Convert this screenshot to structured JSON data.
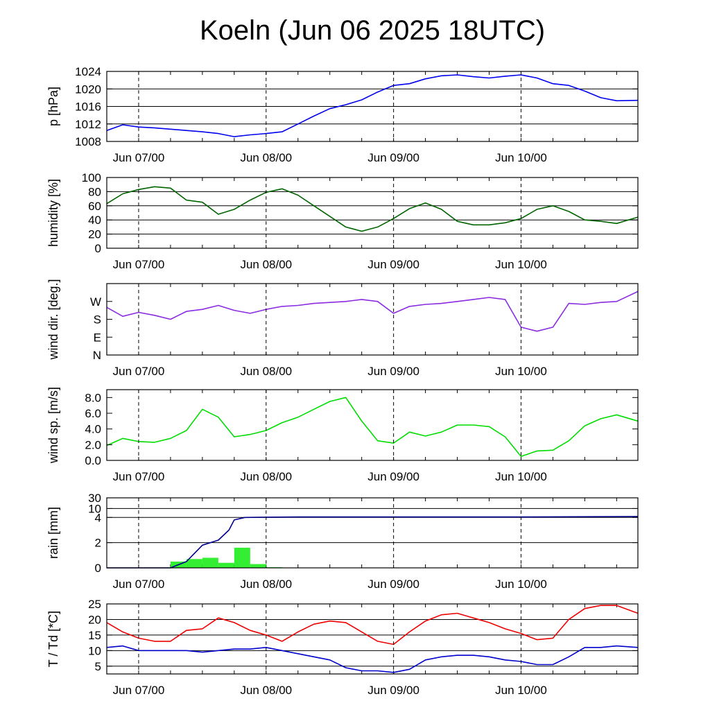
{
  "title": "Koeln (Jun 06 2025 18UTC)",
  "time_axis": {
    "start": "2025-06-06T18:00Z",
    "end": "2025-06-10T22:00Z",
    "tick_labels": [
      "Jun 07/00",
      "Jun 08/00",
      "Jun 09/00",
      "Jun 10/00"
    ],
    "tick_times": [
      "2025-06-07T00:00Z",
      "2025-06-08T00:00Z",
      "2025-06-09T00:00Z",
      "2025-06-10T00:00Z"
    ]
  },
  "chart_data": [
    {
      "type": "line",
      "ylabel": "p [hPa]",
      "ylim": [
        1008,
        1024
      ],
      "yticks": [
        1008,
        1012,
        1016,
        1020,
        1024
      ],
      "ytick_labels": [
        "1008",
        "1012",
        "1016",
        "1020",
        "1024"
      ],
      "grid": true,
      "series": [
        {
          "color": "#0000ee",
          "x": [
            "2025-06-06T18:00Z",
            "2025-06-06T21:00Z",
            "2025-06-07T00:00Z",
            "2025-06-07T03:00Z",
            "2025-06-07T06:00Z",
            "2025-06-07T09:00Z",
            "2025-06-07T12:00Z",
            "2025-06-07T15:00Z",
            "2025-06-07T18:00Z",
            "2025-06-07T21:00Z",
            "2025-06-08T00:00Z",
            "2025-06-08T03:00Z",
            "2025-06-08T06:00Z",
            "2025-06-08T09:00Z",
            "2025-06-08T12:00Z",
            "2025-06-08T15:00Z",
            "2025-06-08T18:00Z",
            "2025-06-08T21:00Z",
            "2025-06-09T00:00Z",
            "2025-06-09T03:00Z",
            "2025-06-09T06:00Z",
            "2025-06-09T09:00Z",
            "2025-06-09T12:00Z",
            "2025-06-09T15:00Z",
            "2025-06-09T18:00Z",
            "2025-06-09T21:00Z",
            "2025-06-10T00:00Z",
            "2025-06-10T03:00Z",
            "2025-06-10T06:00Z",
            "2025-06-10T09:00Z",
            "2025-06-10T12:00Z",
            "2025-06-10T15:00Z",
            "2025-06-10T18:00Z",
            "2025-06-10T22:00Z"
          ],
          "y": [
            1010.5,
            1011.8,
            1011.3,
            1011.1,
            1010.8,
            1010.5,
            1010.2,
            1009.8,
            1009.1,
            1009.5,
            1009.8,
            1010.2,
            1012.0,
            1013.8,
            1015.5,
            1016.4,
            1017.5,
            1019.3,
            1020.8,
            1021.2,
            1022.3,
            1023.0,
            1023.2,
            1022.8,
            1022.5,
            1022.9,
            1023.2,
            1022.5,
            1021.2,
            1020.8,
            1019.5,
            1018.0,
            1017.3,
            1017.4
          ]
        }
      ]
    },
    {
      "type": "line",
      "ylabel": "humidity [%]",
      "ylim": [
        0,
        100
      ],
      "yticks": [
        0,
        20,
        40,
        60,
        80,
        100
      ],
      "ytick_labels": [
        "0",
        "20",
        "40",
        "60",
        "80",
        "100"
      ],
      "grid": true,
      "series": [
        {
          "color": "#006400",
          "x": [
            "2025-06-06T18:00Z",
            "2025-06-06T21:00Z",
            "2025-06-07T00:00Z",
            "2025-06-07T03:00Z",
            "2025-06-07T06:00Z",
            "2025-06-07T09:00Z",
            "2025-06-07T12:00Z",
            "2025-06-07T15:00Z",
            "2025-06-07T18:00Z",
            "2025-06-07T21:00Z",
            "2025-06-08T00:00Z",
            "2025-06-08T03:00Z",
            "2025-06-08T06:00Z",
            "2025-06-08T09:00Z",
            "2025-06-08T12:00Z",
            "2025-06-08T15:00Z",
            "2025-06-08T18:00Z",
            "2025-06-08T21:00Z",
            "2025-06-09T00:00Z",
            "2025-06-09T03:00Z",
            "2025-06-09T06:00Z",
            "2025-06-09T09:00Z",
            "2025-06-09T12:00Z",
            "2025-06-09T15:00Z",
            "2025-06-09T18:00Z",
            "2025-06-09T21:00Z",
            "2025-06-10T00:00Z",
            "2025-06-10T03:00Z",
            "2025-06-10T06:00Z",
            "2025-06-10T09:00Z",
            "2025-06-10T12:00Z",
            "2025-06-10T15:00Z",
            "2025-06-10T18:00Z",
            "2025-06-10T22:00Z"
          ],
          "y": [
            63,
            77,
            83,
            87,
            85,
            68,
            65,
            48,
            55,
            68,
            79,
            84,
            75,
            60,
            45,
            30,
            24,
            30,
            42,
            56,
            64,
            55,
            38,
            33,
            33,
            36,
            42,
            55,
            60,
            52,
            40,
            38,
            35,
            44
          ]
        }
      ]
    },
    {
      "type": "line",
      "ylabel": "wind dir. [deg.]",
      "ylim": [
        0,
        360
      ],
      "yticks": [
        0,
        90,
        180,
        270
      ],
      "ytick_labels": [
        "N",
        "E",
        "S",
        "W"
      ],
      "grid": false,
      "series": [
        {
          "color": "#8a2be2",
          "x": [
            "2025-06-06T18:00Z",
            "2025-06-06T21:00Z",
            "2025-06-07T00:00Z",
            "2025-06-07T03:00Z",
            "2025-06-07T06:00Z",
            "2025-06-07T09:00Z",
            "2025-06-07T12:00Z",
            "2025-06-07T15:00Z",
            "2025-06-07T18:00Z",
            "2025-06-07T21:00Z",
            "2025-06-08T00:00Z",
            "2025-06-08T03:00Z",
            "2025-06-08T06:00Z",
            "2025-06-08T09:00Z",
            "2025-06-08T12:00Z",
            "2025-06-08T15:00Z",
            "2025-06-08T18:00Z",
            "2025-06-08T21:00Z",
            "2025-06-09T00:00Z",
            "2025-06-09T03:00Z",
            "2025-06-09T06:00Z",
            "2025-06-09T09:00Z",
            "2025-06-09T12:00Z",
            "2025-06-09T15:00Z",
            "2025-06-09T18:00Z",
            "2025-06-09T21:00Z",
            "2025-06-10T00:00Z",
            "2025-06-10T03:00Z",
            "2025-06-10T06:00Z",
            "2025-06-10T09:00Z",
            "2025-06-10T12:00Z",
            "2025-06-10T15:00Z",
            "2025-06-10T18:00Z",
            "2025-06-10T22:00Z"
          ],
          "y": [
            240,
            195,
            215,
            200,
            180,
            220,
            230,
            250,
            225,
            210,
            230,
            245,
            250,
            260,
            265,
            270,
            280,
            270,
            210,
            245,
            255,
            260,
            270,
            280,
            290,
            280,
            140,
            120,
            140,
            260,
            255,
            265,
            270,
            320
          ]
        }
      ]
    },
    {
      "type": "line",
      "ylabel": "wind sp. [m/s]",
      "ylim": [
        0,
        9
      ],
      "yticks": [
        0,
        2,
        4,
        6,
        8
      ],
      "ytick_labels": [
        "0.0",
        "2.0",
        "4.0",
        "6.0",
        "8.0"
      ],
      "grid": false,
      "series": [
        {
          "color": "#00dd00",
          "x": [
            "2025-06-06T18:00Z",
            "2025-06-06T21:00Z",
            "2025-06-07T00:00Z",
            "2025-06-07T03:00Z",
            "2025-06-07T06:00Z",
            "2025-06-07T09:00Z",
            "2025-06-07T12:00Z",
            "2025-06-07T15:00Z",
            "2025-06-07T18:00Z",
            "2025-06-07T21:00Z",
            "2025-06-08T00:00Z",
            "2025-06-08T03:00Z",
            "2025-06-08T06:00Z",
            "2025-06-08T09:00Z",
            "2025-06-08T12:00Z",
            "2025-06-08T15:00Z",
            "2025-06-08T18:00Z",
            "2025-06-08T21:00Z",
            "2025-06-09T00:00Z",
            "2025-06-09T03:00Z",
            "2025-06-09T06:00Z",
            "2025-06-09T09:00Z",
            "2025-06-09T12:00Z",
            "2025-06-09T15:00Z",
            "2025-06-09T18:00Z",
            "2025-06-09T21:00Z",
            "2025-06-10T00:00Z",
            "2025-06-10T03:00Z",
            "2025-06-10T06:00Z",
            "2025-06-10T09:00Z",
            "2025-06-10T12:00Z",
            "2025-06-10T15:00Z",
            "2025-06-10T18:00Z",
            "2025-06-10T22:00Z"
          ],
          "y": [
            1.9,
            2.8,
            2.4,
            2.3,
            2.8,
            3.8,
            6.5,
            5.5,
            3.0,
            3.3,
            3.8,
            4.8,
            5.5,
            6.5,
            7.5,
            8.0,
            5.0,
            2.5,
            2.2,
            3.6,
            3.1,
            3.6,
            4.5,
            4.5,
            4.3,
            3.0,
            0.5,
            1.2,
            1.3,
            2.5,
            4.4,
            5.3,
            5.8,
            5.0
          ]
        }
      ]
    },
    {
      "type": "bar",
      "ylabel": "rain [mm]",
      "ylim": [
        0,
        30
      ],
      "yticks": [
        0,
        2,
        4,
        10,
        30
      ],
      "ytick_labels": [
        "0",
        "2",
        "4",
        "10",
        "30"
      ],
      "grid": true,
      "bar_color": "#33ee33",
      "line_color": "#00008b",
      "bars": [
        {
          "start": "2025-06-07T06:00Z",
          "end": "2025-06-07T09:00Z",
          "value": 0.5
        },
        {
          "start": "2025-06-07T09:00Z",
          "end": "2025-06-07T12:00Z",
          "value": 0.7
        },
        {
          "start": "2025-06-07T12:00Z",
          "end": "2025-06-07T15:00Z",
          "value": 0.8
        },
        {
          "start": "2025-06-07T15:00Z",
          "end": "2025-06-07T18:00Z",
          "value": 0.4
        },
        {
          "start": "2025-06-07T18:00Z",
          "end": "2025-06-07T21:00Z",
          "value": 1.6
        },
        {
          "start": "2025-06-07T21:00Z",
          "end": "2025-06-08T00:00Z",
          "value": 0.3
        },
        {
          "start": "2025-06-08T00:00Z",
          "end": "2025-06-08T03:00Z",
          "value": 0.05
        }
      ],
      "accumulated": {
        "x": [
          "2025-06-06T18:00Z",
          "2025-06-07T06:00Z",
          "2025-06-07T09:00Z",
          "2025-06-07T12:00Z",
          "2025-06-07T15:00Z",
          "2025-06-07T17:00Z",
          "2025-06-07T18:00Z",
          "2025-06-07T20:00Z",
          "2025-06-08T00:00Z",
          "2025-06-08T06:00Z",
          "2025-06-09T00:00Z",
          "2025-06-10T00:00Z",
          "2025-06-10T22:00Z"
        ],
        "y": [
          0,
          0,
          0.5,
          1.8,
          2.2,
          3.0,
          3.8,
          4.0,
          4.1,
          4.2,
          4.2,
          4.2,
          4.4
        ]
      }
    },
    {
      "type": "line",
      "ylabel": "T / Td [*C]",
      "ylim": [
        2.5,
        25
      ],
      "yticks": [
        5,
        10,
        15,
        20,
        25
      ],
      "ytick_labels": [
        "5",
        "10",
        "15",
        "20",
        "25"
      ],
      "grid": true,
      "series": [
        {
          "color": "#ee0000",
          "x": [
            "2025-06-06T18:00Z",
            "2025-06-06T21:00Z",
            "2025-06-07T00:00Z",
            "2025-06-07T03:00Z",
            "2025-06-07T06:00Z",
            "2025-06-07T09:00Z",
            "2025-06-07T12:00Z",
            "2025-06-07T15:00Z",
            "2025-06-07T18:00Z",
            "2025-06-07T21:00Z",
            "2025-06-08T00:00Z",
            "2025-06-08T03:00Z",
            "2025-06-08T06:00Z",
            "2025-06-08T09:00Z",
            "2025-06-08T12:00Z",
            "2025-06-08T15:00Z",
            "2025-06-08T18:00Z",
            "2025-06-08T21:00Z",
            "2025-06-09T00:00Z",
            "2025-06-09T03:00Z",
            "2025-06-09T06:00Z",
            "2025-06-09T09:00Z",
            "2025-06-09T12:00Z",
            "2025-06-09T15:00Z",
            "2025-06-09T18:00Z",
            "2025-06-09T21:00Z",
            "2025-06-10T00:00Z",
            "2025-06-10T03:00Z",
            "2025-06-10T06:00Z",
            "2025-06-10T09:00Z",
            "2025-06-10T12:00Z",
            "2025-06-10T15:00Z",
            "2025-06-10T18:00Z",
            "2025-06-10T22:00Z"
          ],
          "y": [
            19,
            16,
            14,
            13,
            13,
            16.5,
            17,
            20.5,
            19,
            16.5,
            15,
            13,
            16,
            18.5,
            19.5,
            19,
            16,
            13,
            12,
            16,
            19.5,
            21.5,
            22,
            20.5,
            19,
            17,
            15.5,
            13.5,
            14,
            20,
            23.5,
            24.5,
            24.5,
            22
          ]
        },
        {
          "color": "#0000cc",
          "x": [
            "2025-06-06T18:00Z",
            "2025-06-06T21:00Z",
            "2025-06-07T00:00Z",
            "2025-06-07T03:00Z",
            "2025-06-07T06:00Z",
            "2025-06-07T09:00Z",
            "2025-06-07T12:00Z",
            "2025-06-07T15:00Z",
            "2025-06-07T18:00Z",
            "2025-06-07T21:00Z",
            "2025-06-08T00:00Z",
            "2025-06-08T03:00Z",
            "2025-06-08T06:00Z",
            "2025-06-08T09:00Z",
            "2025-06-08T12:00Z",
            "2025-06-08T15:00Z",
            "2025-06-08T18:00Z",
            "2025-06-08T21:00Z",
            "2025-06-09T00:00Z",
            "2025-06-09T03:00Z",
            "2025-06-09T06:00Z",
            "2025-06-09T09:00Z",
            "2025-06-09T12:00Z",
            "2025-06-09T15:00Z",
            "2025-06-09T18:00Z",
            "2025-06-09T21:00Z",
            "2025-06-10T00:00Z",
            "2025-06-10T03:00Z",
            "2025-06-10T06:00Z",
            "2025-06-10T09:00Z",
            "2025-06-10T12:00Z",
            "2025-06-10T15:00Z",
            "2025-06-10T18:00Z",
            "2025-06-10T22:00Z"
          ],
          "y": [
            11,
            11.5,
            10,
            10,
            10,
            10,
            9.5,
            10,
            10.5,
            10.5,
            11,
            10,
            9,
            8,
            7,
            4.5,
            3.5,
            3.5,
            3,
            4,
            7,
            8,
            8.5,
            8.5,
            8,
            7,
            6.5,
            5.5,
            5.5,
            8,
            11,
            11,
            11.5,
            11
          ]
        }
      ]
    }
  ]
}
